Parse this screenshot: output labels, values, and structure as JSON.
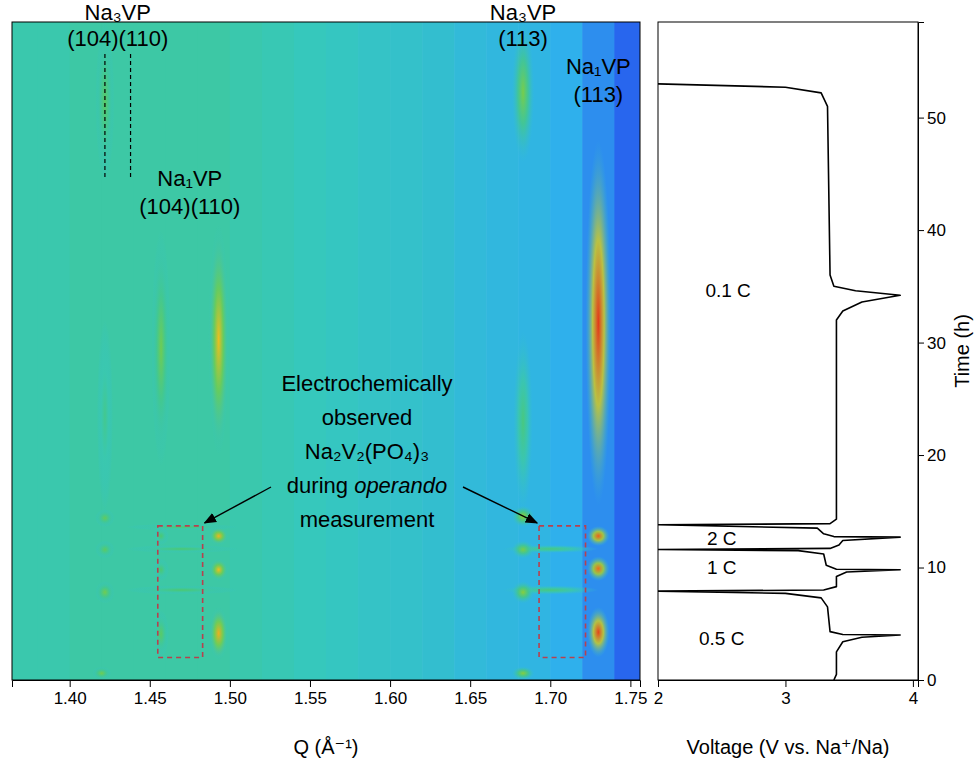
{
  "chart_data": [
    {
      "type": "heatmap",
      "x_label": "Q (Å⁻¹)",
      "xlim": [
        1.364,
        1.756
      ],
      "xticks": [
        {
          "value": 1.4,
          "label": "1.40"
        },
        {
          "value": 1.45,
          "label": "1.45"
        },
        {
          "value": 1.5,
          "label": "1.50"
        },
        {
          "value": 1.55,
          "label": "1.55"
        },
        {
          "value": 1.6,
          "label": "1.60"
        },
        {
          "value": 1.65,
          "label": "1.65"
        },
        {
          "value": 1.7,
          "label": "1.70"
        },
        {
          "value": 1.75,
          "label": "1.75"
        }
      ],
      "ylim": [
        0,
        58.5
      ],
      "tick_labels": "x",
      "background": {
        "q": [
          1.37,
          1.39,
          1.41,
          1.43,
          1.45,
          1.47,
          1.49,
          1.51,
          1.53,
          1.55,
          1.57,
          1.59,
          1.61,
          1.63,
          1.65,
          1.67,
          1.69,
          1.71,
          1.73,
          1.75
        ],
        "intensity": [
          0.42,
          0.42,
          0.43,
          0.43,
          0.43,
          0.43,
          0.43,
          0.42,
          0.41,
          0.4,
          0.39,
          0.38,
          0.37,
          0.36,
          0.34,
          0.33,
          0.32,
          0.3,
          0.25,
          0.18
        ]
      },
      "spots": [
        {
          "q": 1.47,
          "t": [
            7.6,
            8.4
          ],
          "width": 0.07,
          "intensity": 0.5
        },
        {
          "q": 1.47,
          "t": [
            11.3,
            12.0
          ],
          "width": 0.07,
          "intensity": 0.5
        },
        {
          "q": 1.47,
          "t": [
            13.3,
            13.9
          ],
          "width": 0.07,
          "intensity": 0.5
        },
        {
          "q": 1.7,
          "t": [
            7.6,
            8.4
          ],
          "width": 0.06,
          "intensity": 0.48
        },
        {
          "q": 1.7,
          "t": [
            11.3,
            12.0
          ],
          "width": 0.06,
          "intensity": 0.48
        },
        {
          "q": 1.422,
          "t": [
            15,
            32
          ],
          "width": 0.01,
          "intensity": 0.46
        },
        {
          "q": 1.683,
          "t": [
            15,
            31
          ],
          "width": 0.012,
          "intensity": 0.48
        },
        {
          "q": 1.422,
          "t": [
            44.4,
            58.5
          ],
          "width": 0.012,
          "intensity": 0.52
        },
        {
          "q": 1.683,
          "t": [
            46,
            58.5
          ],
          "width": 0.014,
          "intensity": 0.56
        },
        {
          "q": 1.457,
          "t": [
            19,
            40
          ],
          "width": 0.012,
          "intensity": 0.55
        },
        {
          "q": 1.493,
          "t": [
            20,
            40.5
          ],
          "width": 0.013,
          "intensity": 0.72
        },
        {
          "q": 1.73,
          "t": [
            15.5,
            48
          ],
          "width": 0.016,
          "intensity": 0.97
        },
        {
          "q": 1.422,
          "t": [
            6.8,
            8.8
          ],
          "width": 0.012,
          "intensity": 0.55
        },
        {
          "q": 1.422,
          "t": [
            10.8,
            12.4
          ],
          "width": 0.012,
          "intensity": 0.52
        },
        {
          "q": 1.422,
          "t": [
            13.6,
            15.2
          ],
          "width": 0.012,
          "intensity": 0.53
        },
        {
          "q": 1.42,
          "t": [
            0,
            1.2
          ],
          "width": 0.012,
          "intensity": 0.55
        },
        {
          "q": 1.683,
          "t": [
            0,
            1.2
          ],
          "width": 0.014,
          "intensity": 0.58
        },
        {
          "q": 1.683,
          "t": [
            6.8,
            8.8
          ],
          "width": 0.014,
          "intensity": 0.58
        },
        {
          "q": 1.683,
          "t": [
            10.8,
            12.4
          ],
          "width": 0.014,
          "intensity": 0.56
        },
        {
          "q": 1.683,
          "t": [
            13.6,
            15.5
          ],
          "width": 0.014,
          "intensity": 0.6
        },
        {
          "q": 1.457,
          "t": [
            2.0,
            6.2
          ],
          "width": 0.01,
          "intensity": 0.52
        },
        {
          "q": 1.457,
          "t": [
            8.8,
            10.8
          ],
          "width": 0.01,
          "intensity": 0.5
        },
        {
          "q": 1.457,
          "t": [
            12.0,
            13.6
          ],
          "width": 0.01,
          "intensity": 0.5
        },
        {
          "q": 1.493,
          "t": [
            1.8,
            6.5
          ],
          "width": 0.012,
          "intensity": 0.75
        },
        {
          "q": 1.493,
          "t": [
            8.8,
            10.8
          ],
          "width": 0.012,
          "intensity": 0.72
        },
        {
          "q": 1.493,
          "t": [
            12.0,
            13.6
          ],
          "width": 0.012,
          "intensity": 0.74
        },
        {
          "q": 1.73,
          "t": [
            2.0,
            6.5
          ],
          "width": 0.014,
          "intensity": 0.95
        },
        {
          "q": 1.73,
          "t": [
            8.8,
            11.0
          ],
          "width": 0.014,
          "intensity": 0.88
        },
        {
          "q": 1.73,
          "t": [
            11.9,
            13.7
          ],
          "width": 0.014,
          "intensity": 0.9
        }
      ],
      "peak_labels": [
        {
          "phase": "Na₃VP",
          "reflections": [
            {
              "hkl": "(104)",
              "q": 1.422
            },
            {
              "hkl": "(110)",
              "q": 1.438
            }
          ],
          "line_style": "dashed"
        },
        {
          "phase": "Na₁VP",
          "reflections": [
            {
              "hkl": "(104)",
              "q": 1.457
            },
            {
              "hkl": "(110)",
              "q": 1.493
            }
          ]
        },
        {
          "phase": "Na₃VP",
          "reflections": [
            {
              "hkl": "(113)",
              "q": 1.683
            }
          ]
        },
        {
          "phase": "Na₁VP",
          "reflections": [
            {
              "hkl": "(113)",
              "q": 1.73
            }
          ]
        }
      ],
      "annotation": {
        "lines": [
          "Electrochemically",
          "observed",
          "Na₂V₂(PO₄)₃",
          "during operando",
          "measurement"
        ],
        "italic": "operando",
        "boxes": [
          {
            "q": [
              1.455,
              1.483
            ],
            "t": [
              2,
              13.7
            ]
          },
          {
            "q": [
              1.693,
              1.722
            ],
            "t": [
              2,
              13.7
            ]
          }
        ]
      }
    },
    {
      "type": "line",
      "x_label": "Voltage (V vs. Na⁺/Na)",
      "y_label": "Time (h)",
      "xlim": [
        2,
        4.04
      ],
      "xticks": [
        2,
        3,
        4
      ],
      "ylim": [
        0,
        58.5
      ],
      "yticks": [
        0,
        10,
        20,
        30,
        40,
        50
      ],
      "series": [
        {
          "color": "#000000",
          "x": [
            3.38,
            3.4,
            3.4,
            3.45,
            3.6,
            3.9,
            3.45,
            3.35,
            3.33,
            3.28,
            3.0,
            2.0,
            3.3,
            3.4,
            3.4,
            3.48,
            3.9,
            3.4,
            3.32,
            3.3,
            3.1,
            2.0,
            3.35,
            3.42,
            3.45,
            3.9,
            3.38,
            3.3,
            3.25,
            2.0,
            3.35,
            3.4,
            3.4,
            3.45,
            3.6,
            3.9,
            3.55,
            3.38,
            3.35,
            3.33,
            3.28,
            3.0,
            2.0
          ],
          "values": [
            0,
            0.5,
            2.5,
            3.4,
            3.8,
            4.0,
            4.05,
            4.3,
            6.5,
            7.3,
            7.7,
            7.9,
            8.0,
            8.3,
            9.2,
            9.6,
            9.8,
            9.85,
            10.2,
            11.2,
            11.5,
            11.6,
            11.7,
            12.0,
            12.4,
            12.7,
            12.75,
            13.0,
            13.5,
            13.8,
            13.9,
            14.3,
            32.0,
            32.8,
            33.6,
            34.2,
            34.6,
            35.0,
            36,
            51,
            52.2,
            52.7,
            53.0
          ]
        }
      ],
      "annotations": [
        {
          "text": "0.5 C"
        },
        {
          "text": "1 C"
        },
        {
          "text": "2 C"
        },
        {
          "text": "0.1 C"
        }
      ]
    }
  ]
}
